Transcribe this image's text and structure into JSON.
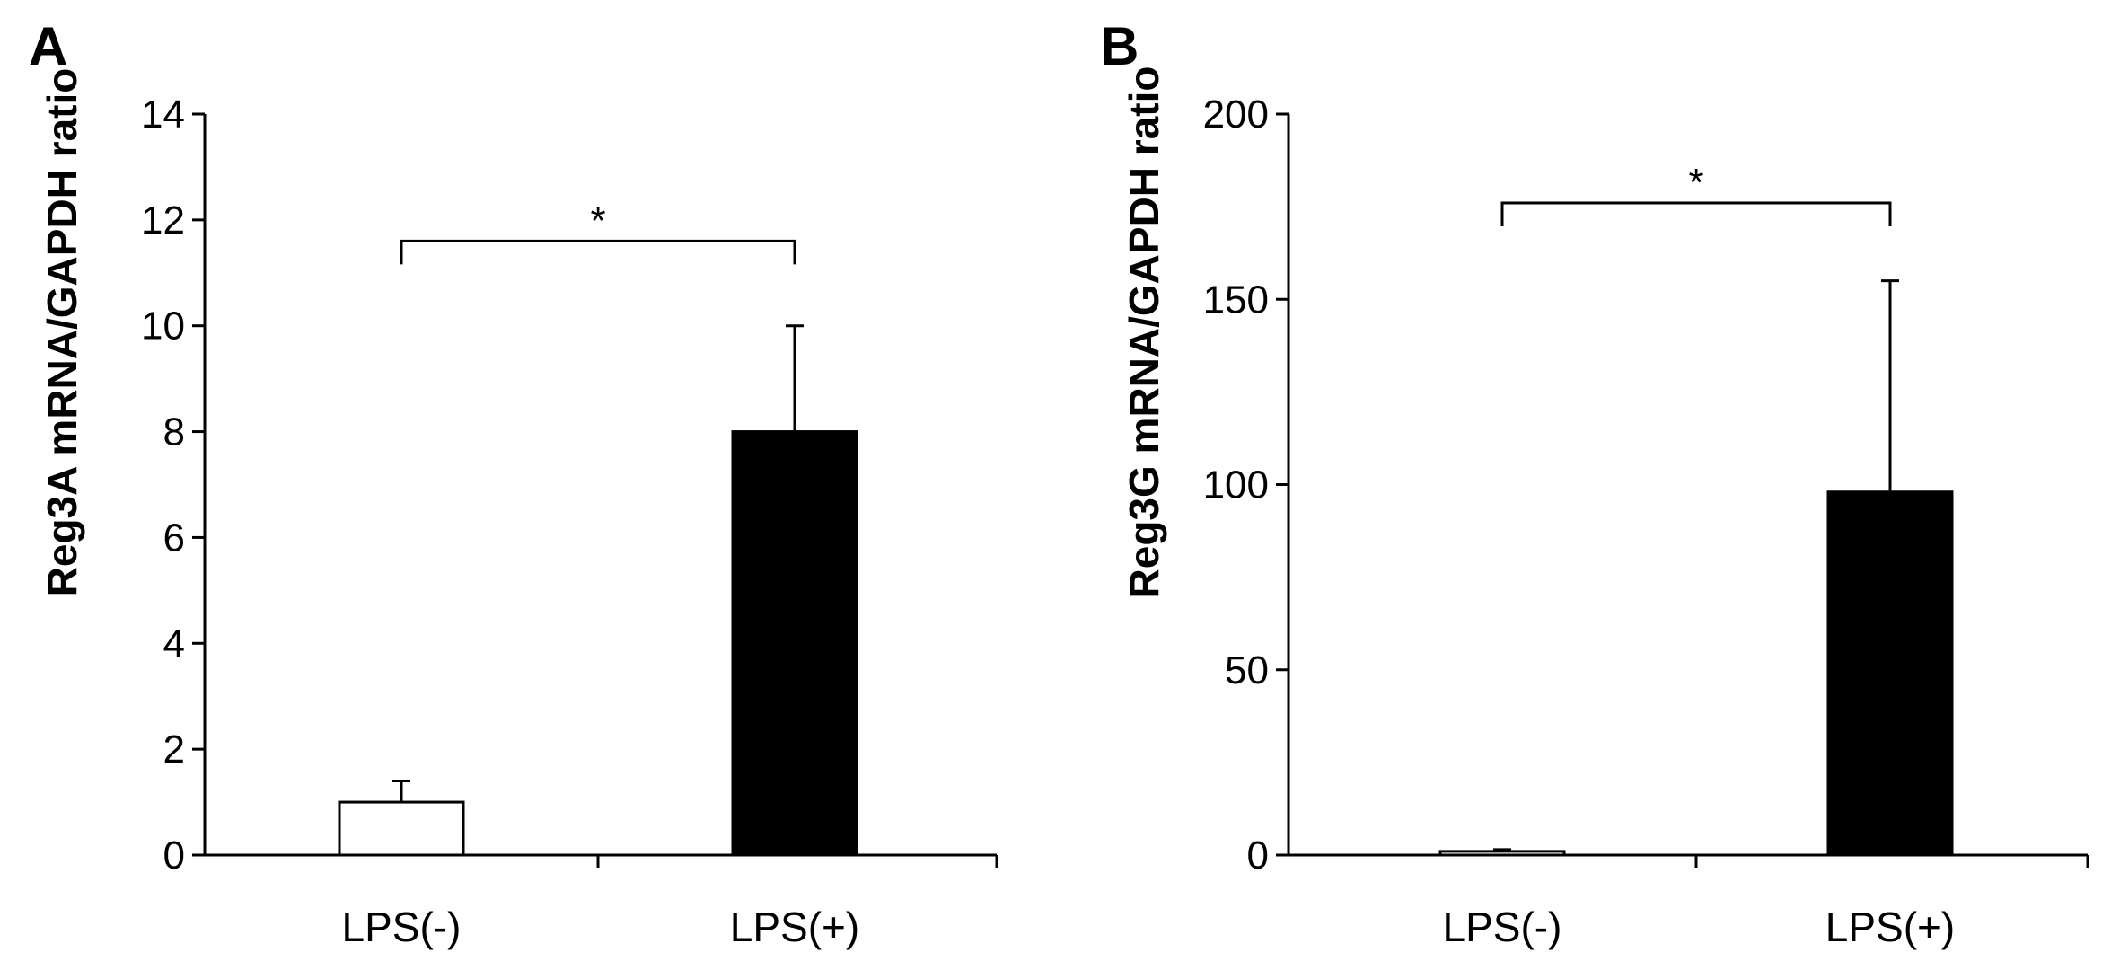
{
  "chart_data": [
    {
      "type": "bar",
      "panel": "A",
      "ylabel": "Reg3A mRNA/GAPDH ratio",
      "xlabel": "",
      "categories": [
        "LPS(-)",
        "LPS(+)"
      ],
      "values": [
        1,
        8
      ],
      "errors": [
        0.4,
        2
      ],
      "bar_colors": [
        "#ffffff",
        "#000000"
      ],
      "ylim": [
        0,
        14
      ],
      "yticks": [
        0,
        2,
        4,
        6,
        8,
        10,
        12,
        14
      ],
      "significance": {
        "label": "*",
        "between": [
          0,
          1
        ],
        "level": 11.6
      }
    },
    {
      "type": "bar",
      "panel": "B",
      "ylabel": "Reg3G mRNA/GAPDH ratio",
      "xlabel": "",
      "categories": [
        "LPS(-)",
        "LPS(+)"
      ],
      "values": [
        1,
        98
      ],
      "errors": [
        0.5,
        57
      ],
      "bar_colors": [
        "#ffffff",
        "#000000"
      ],
      "ylim": [
        0,
        200
      ],
      "yticks": [
        0,
        50,
        100,
        150,
        200
      ],
      "significance": {
        "label": "*",
        "between": [
          0,
          1
        ],
        "level": 176
      }
    }
  ]
}
